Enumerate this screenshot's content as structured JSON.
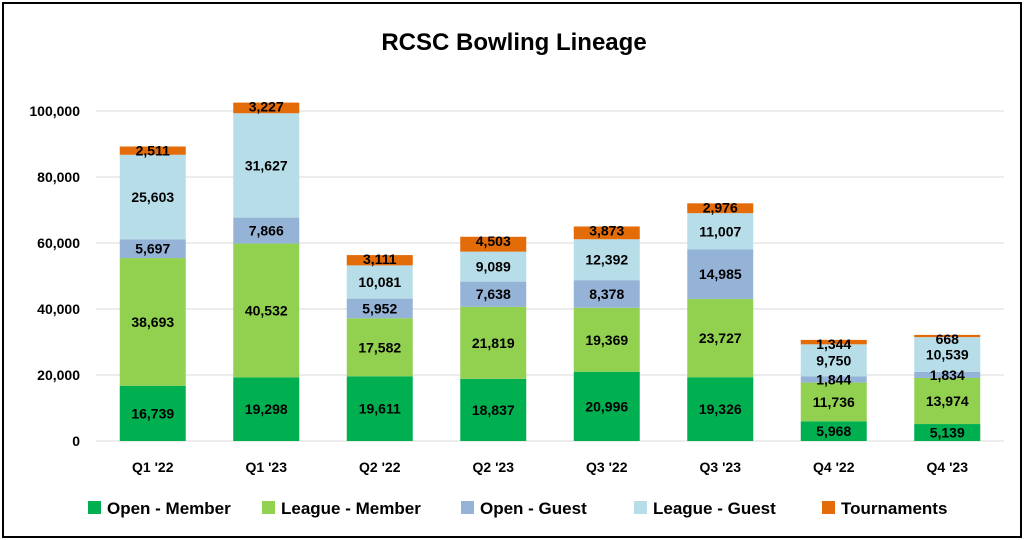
{
  "chart_data": {
    "type": "bar",
    "stacked": true,
    "title": "RCSC Bowling Lineage",
    "xlabel": "",
    "ylabel": "",
    "categories": [
      "Q1 '22",
      "Q1 '23",
      "Q2 '22",
      "Q2 '23",
      "Q3 '22",
      "Q3 '23",
      "Q4 '22",
      "Q4 '23"
    ],
    "ylim": [
      0,
      110000
    ],
    "yticks": [
      0,
      20000,
      40000,
      60000,
      80000,
      100000
    ],
    "ytick_labels": [
      "0",
      "20,000",
      "40,000",
      "60,000",
      "80,000",
      "100,000"
    ],
    "grid": true,
    "legend_position": "bottom",
    "series": [
      {
        "name": "Open - Member",
        "color": "#00b050",
        "values": [
          16739,
          19298,
          19611,
          18837,
          20996,
          19326,
          5968,
          5139
        ],
        "labels": [
          "16,739",
          "19,298",
          "19,611",
          "18,837",
          "20,996",
          "19,326",
          "5,968",
          "5,139"
        ]
      },
      {
        "name": "League - Member",
        "color": "#92d050",
        "values": [
          38693,
          40532,
          17582,
          21819,
          19369,
          23727,
          11736,
          13974
        ],
        "labels": [
          "38,693",
          "40,532",
          "17,582",
          "21,819",
          "19,369",
          "23,727",
          "11,736",
          "13,974"
        ]
      },
      {
        "name": "Open - Guest",
        "color": "#95b3d7",
        "values": [
          5697,
          7866,
          5952,
          7638,
          8378,
          14985,
          1844,
          1834
        ],
        "labels": [
          "5,697",
          "7,866",
          "5,952",
          "7,638",
          "8,378",
          "14,985",
          "1,844",
          "1,834"
        ]
      },
      {
        "name": "League - Guest",
        "color": "#b7dde8",
        "values": [
          25603,
          31627,
          10081,
          9089,
          12392,
          11007,
          9750,
          10539
        ],
        "labels": [
          "25,603",
          "31,627",
          "10,081",
          "9,089",
          "12,392",
          "11,007",
          "9,750",
          "10,539"
        ]
      },
      {
        "name": "Tournaments",
        "color": "#e36c09",
        "values": [
          2511,
          3227,
          3111,
          4503,
          3873,
          2976,
          1344,
          668
        ],
        "labels": [
          "2,511",
          "3,227",
          "3,111",
          "4,503",
          "3,873",
          "2,976",
          "1,344",
          "668"
        ]
      }
    ]
  }
}
